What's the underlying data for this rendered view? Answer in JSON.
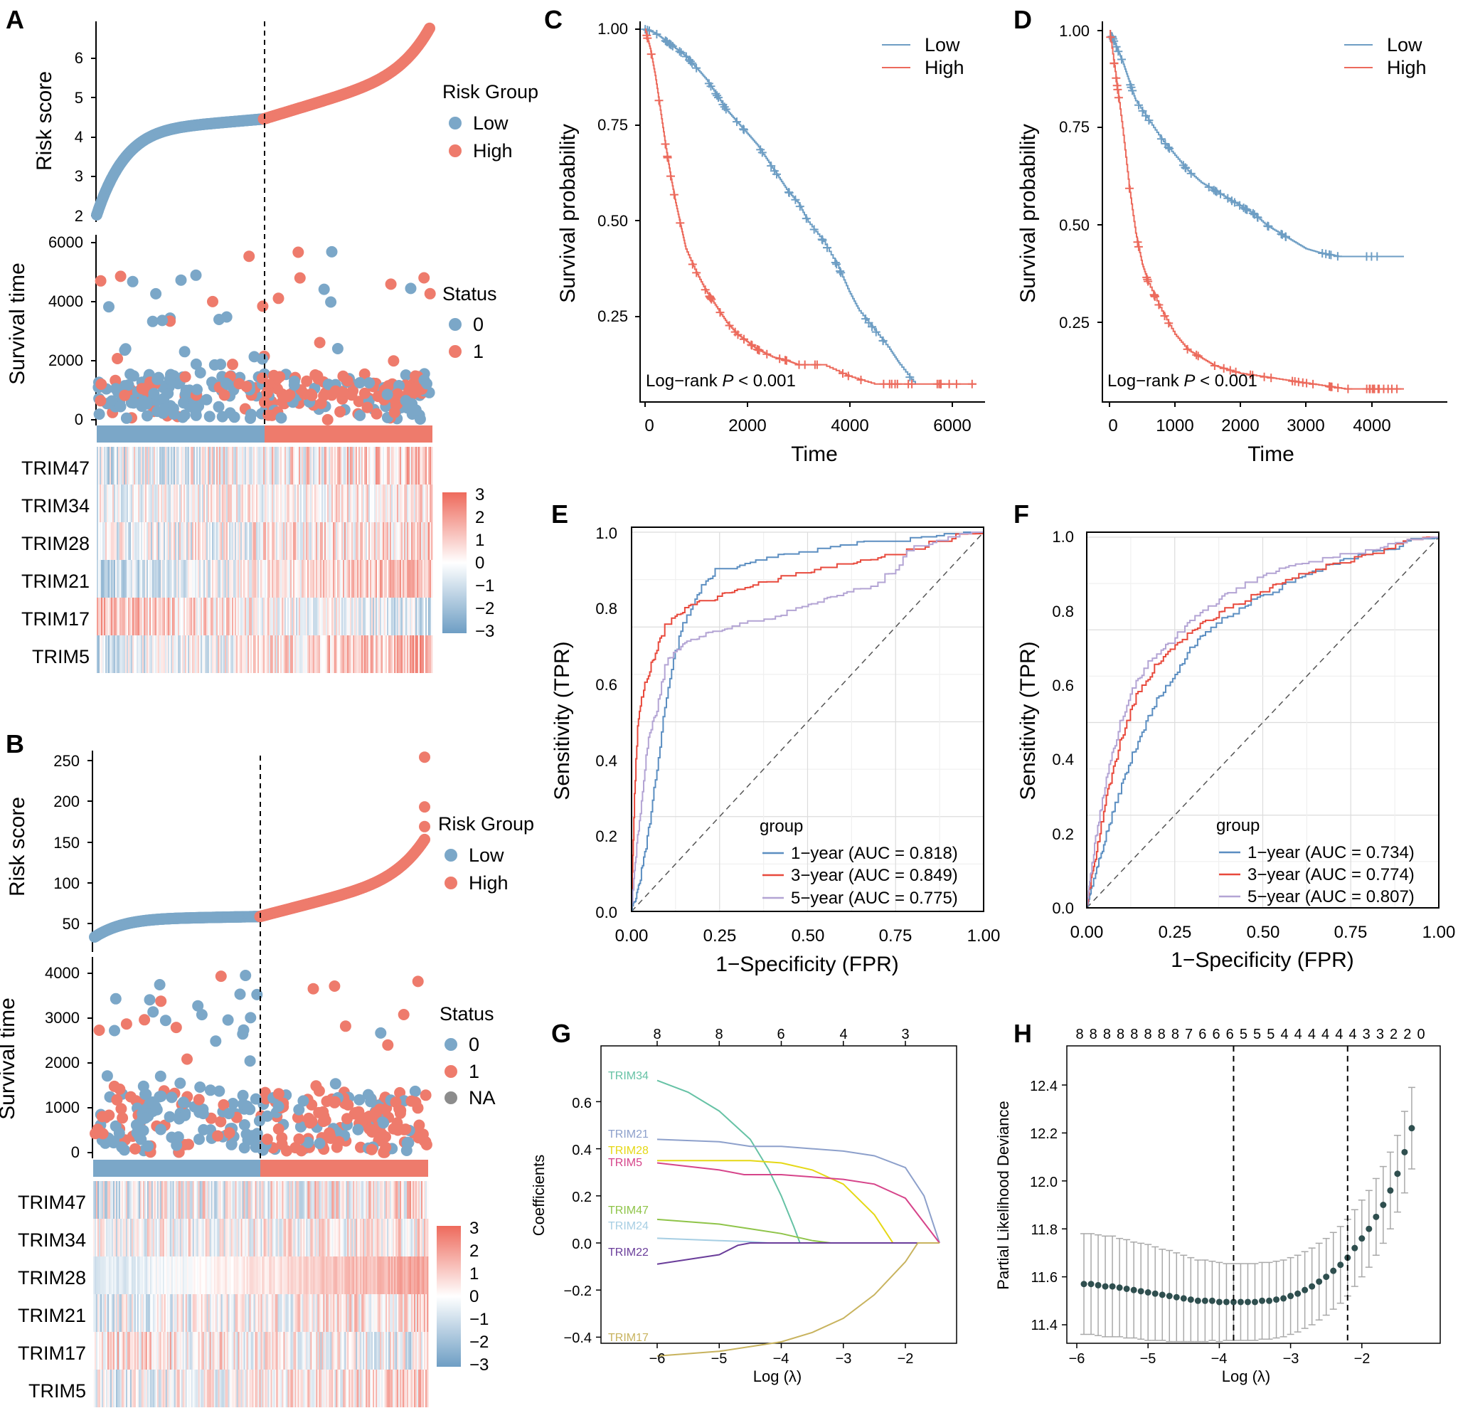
{
  "colors": {
    "low": "#7BA7C8",
    "high": "#EE7B6C",
    "low_line": "#6E9EC4",
    "high_line": "#EC6A5C",
    "na": "#8C8C8C",
    "roc1": "#5B8EC1",
    "roc3": "#E8493C",
    "roc5": "#B3A4D4",
    "dev_point": "#2F4F4F",
    "err": "#A9A9A9"
  },
  "panel_A": {
    "letter": "A",
    "risk_ylabel": "Risk score",
    "surv_ylabel": "Survival time",
    "risk_ticks": [
      "2",
      "3",
      "4",
      "5",
      "6"
    ],
    "surv_ticks": [
      "0",
      "2000",
      "4000",
      "6000"
    ],
    "legend_group_title": "Risk Group",
    "legend_low": "Low",
    "legend_high": "High",
    "legend_status_title": "Status",
    "legend_status_0": "0",
    "legend_status_1": "1",
    "genes": [
      "TRIM47",
      "TRIM34",
      "TRIM28",
      "TRIM21",
      "TRIM17",
      "TRIM5"
    ],
    "color_ticks": [
      "3",
      "2",
      "1",
      "0",
      "−1",
      "−2",
      "−3"
    ]
  },
  "panel_B": {
    "letter": "B",
    "risk_ylabel": "Risk score",
    "surv_ylabel": "Survival time",
    "risk_ticks": [
      "50",
      "100",
      "150",
      "200",
      "250"
    ],
    "surv_ticks": [
      "0",
      "1000",
      "2000",
      "3000",
      "4000"
    ],
    "legend_group_title": "Risk Group",
    "legend_low": "Low",
    "legend_high": "High",
    "legend_status_title": "Status",
    "legend_status_0": "0",
    "legend_status_1": "1",
    "legend_status_na": "NA",
    "genes": [
      "TRIM47",
      "TRIM34",
      "TRIM28",
      "TRIM21",
      "TRIM17",
      "TRIM5"
    ],
    "color_ticks": [
      "3",
      "2",
      "1",
      "0",
      "−1",
      "−2",
      "−3"
    ]
  },
  "panel_C": {
    "letter": "C",
    "xlabel": "Time",
    "ylabel": "Survival probability",
    "xticks": [
      "0",
      "2000",
      "4000",
      "6000"
    ],
    "yticks": [
      "0.25",
      "0.50",
      "0.75",
      "1.00"
    ],
    "legend": [
      "Low",
      "High"
    ],
    "annotation_prefix": "Log−rank ",
    "annotation_p": "P",
    "annotation_suffix": " < 0.001"
  },
  "panel_D": {
    "letter": "D",
    "xlabel": "Time",
    "ylabel": "Survival probability",
    "xticks": [
      "0",
      "1000",
      "2000",
      "3000",
      "4000"
    ],
    "yticks": [
      "0.25",
      "0.50",
      "0.75",
      "1.00"
    ],
    "legend": [
      "Low",
      "High"
    ],
    "annotation_prefix": "Log−rank ",
    "annotation_p": "P",
    "annotation_suffix": " < 0.001"
  },
  "panel_E": {
    "letter": "E",
    "xlabel": "1−Specificity (FPR)",
    "ylabel": "Sensitivity (TPR)",
    "xticks": [
      "0.00",
      "0.25",
      "0.50",
      "0.75",
      "1.00"
    ],
    "yticks": [
      "0.0",
      "0.2",
      "0.4",
      "0.6",
      "0.8",
      "1.0"
    ],
    "legend_title": "group",
    "legend": [
      "1−year (AUC = 0.818)",
      "3−year (AUC = 0.849)",
      "5−year (AUC = 0.775)"
    ]
  },
  "panel_F": {
    "letter": "F",
    "xlabel": "1−Specificity (FPR)",
    "ylabel": "Sensitivity (TPR)",
    "xticks": [
      "0.00",
      "0.25",
      "0.50",
      "0.75",
      "1.00"
    ],
    "yticks": [
      "0.0",
      "0.2",
      "0.4",
      "0.6",
      "0.8",
      "1.0"
    ],
    "legend_title": "group",
    "legend": [
      "1−year (AUC = 0.734)",
      "3−year (AUC = 0.774)",
      "5−year (AUC = 0.807)"
    ]
  },
  "panel_G": {
    "letter": "G",
    "xlabel": "Log (λ)",
    "ylabel": "Coefficients",
    "xticks": [
      "−6",
      "−5",
      "−4",
      "−3",
      "−2"
    ],
    "yticks": [
      "−0.4",
      "−0.2",
      "0.0",
      "0.2",
      "0.4",
      "0.6"
    ],
    "top_ticks": [
      "8",
      "8",
      "6",
      "4",
      "3"
    ]
  },
  "panel_H": {
    "letter": "H",
    "xlabel": "Log (λ)",
    "ylabel": "Partial Likelihood Deviance",
    "xticks": [
      "−6",
      "−5",
      "−4",
      "−3",
      "−2"
    ],
    "yticks": [
      "11.4",
      "11.6",
      "11.8",
      "12.0",
      "12.2",
      "12.4"
    ],
    "top_ticks": [
      "8",
      "8",
      "8",
      "8",
      "8",
      "8",
      "8",
      "8",
      "7",
      "6",
      "6",
      "6",
      "5",
      "5",
      "5",
      "4",
      "4",
      "4",
      "4",
      "4",
      "4",
      "3",
      "3",
      "2",
      "2",
      "0"
    ]
  },
  "chart_data": [
    {
      "panel": "A",
      "type": "scatter",
      "description_series": "risk score curve",
      "ylabel": "Risk score",
      "ylim": [
        2,
        6.8
      ],
      "n": 480,
      "cutoff_index": 240,
      "risk_min": 2.0,
      "risk_cut": 4.45,
      "risk_max": 6.8,
      "survival_ylabel": "Survival time",
      "survival_ylim": [
        0,
        6000
      ],
      "heatmap_rows": [
        "TRIM47",
        "TRIM34",
        "TRIM28",
        "TRIM21",
        "TRIM17",
        "TRIM5"
      ],
      "heatmap_range": [
        -3,
        3
      ]
    },
    {
      "panel": "B",
      "type": "scatter",
      "ylabel": "Risk score",
      "ylim": [
        20,
        250
      ],
      "n": 480,
      "cutoff_index": 240,
      "risk_min": 20,
      "risk_cut": 46,
      "risk_max": 145,
      "outliers": [
        160,
        185,
        248
      ],
      "survival_ylabel": "Survival time",
      "survival_ylim": [
        0,
        4500
      ],
      "heatmap_rows": [
        "TRIM47",
        "TRIM34",
        "TRIM28",
        "TRIM21",
        "TRIM17",
        "TRIM5"
      ],
      "heatmap_range": [
        -3,
        3
      ]
    },
    {
      "panel": "C",
      "type": "line",
      "xlabel": "Time",
      "ylabel": "Survival probability",
      "xlim": [
        0,
        6500
      ],
      "ylim": [
        0.05,
        1.0
      ],
      "series": [
        {
          "name": "Low",
          "x": [
            0,
            200,
            400,
            600,
            800,
            1000,
            1200,
            1400,
            1600,
            1800,
            2000,
            2200,
            2400,
            2600,
            2800,
            3000,
            3200,
            3500,
            3800,
            4000,
            4200,
            4500,
            4800,
            5000,
            5300
          ],
          "y": [
            1.0,
            0.99,
            0.97,
            0.95,
            0.93,
            0.9,
            0.87,
            0.83,
            0.79,
            0.76,
            0.73,
            0.7,
            0.66,
            0.62,
            0.58,
            0.55,
            0.5,
            0.45,
            0.38,
            0.32,
            0.27,
            0.22,
            0.17,
            0.13,
            0.08
          ]
        },
        {
          "name": "High",
          "x": [
            0,
            100,
            200,
            300,
            400,
            500,
            600,
            700,
            800,
            1000,
            1200,
            1400,
            1600,
            1800,
            2000,
            2200,
            2500,
            2800,
            3000,
            3500,
            4000,
            4500,
            5000,
            6000,
            6500
          ],
          "y": [
            1.0,
            0.95,
            0.88,
            0.79,
            0.7,
            0.62,
            0.55,
            0.49,
            0.43,
            0.37,
            0.32,
            0.28,
            0.24,
            0.21,
            0.19,
            0.17,
            0.15,
            0.14,
            0.13,
            0.13,
            0.1,
            0.08,
            0.08,
            0.08,
            0.08
          ]
        }
      ],
      "annotation": "Log−rank P < 0.001"
    },
    {
      "panel": "D",
      "type": "line",
      "xlabel": "Time",
      "ylabel": "Survival probability",
      "xlim": [
        0,
        4500
      ],
      "ylim": [
        0.05,
        1.0
      ],
      "series": [
        {
          "name": "Low",
          "x": [
            0,
            100,
            200,
            300,
            400,
            600,
            800,
            1000,
            1200,
            1400,
            1600,
            1800,
            2000,
            2200,
            2400,
            2600,
            2800,
            3000,
            3200,
            3500,
            4000,
            4500
          ],
          "y": [
            1.0,
            0.96,
            0.92,
            0.87,
            0.82,
            0.77,
            0.72,
            0.68,
            0.64,
            0.61,
            0.59,
            0.57,
            0.55,
            0.53,
            0.5,
            0.48,
            0.46,
            0.44,
            0.43,
            0.42,
            0.42,
            0.42
          ]
        },
        {
          "name": "High",
          "x": [
            0,
            100,
            200,
            300,
            400,
            500,
            600,
            800,
            1000,
            1200,
            1400,
            1600,
            1800,
            2000,
            2400,
            2800,
            3200,
            3600,
            4000,
            4500
          ],
          "y": [
            1.0,
            0.88,
            0.75,
            0.6,
            0.48,
            0.4,
            0.35,
            0.28,
            0.22,
            0.18,
            0.16,
            0.14,
            0.13,
            0.12,
            0.11,
            0.1,
            0.09,
            0.08,
            0.08,
            0.08
          ]
        }
      ],
      "annotation": "Log−rank P < 0.001"
    },
    {
      "panel": "E",
      "type": "line",
      "xlabel": "1−Specificity (FPR)",
      "ylabel": "Sensitivity (TPR)",
      "xlim": [
        0,
        1
      ],
      "ylim": [
        0,
        1
      ],
      "series": [
        {
          "name": "1−year (AUC = 0.818)",
          "x": [
            0,
            0.02,
            0.05,
            0.08,
            0.1,
            0.12,
            0.15,
            0.2,
            0.25,
            0.3,
            0.4,
            0.5,
            0.6,
            0.7,
            0.8,
            0.9,
            1.0
          ],
          "y": [
            0,
            0.05,
            0.2,
            0.4,
            0.55,
            0.65,
            0.75,
            0.85,
            0.9,
            0.9,
            0.93,
            0.94,
            0.96,
            0.97,
            0.98,
            0.99,
            1.0
          ]
        },
        {
          "name": "3−year (AUC = 0.849)",
          "x": [
            0,
            0.01,
            0.02,
            0.04,
            0.06,
            0.08,
            0.1,
            0.15,
            0.2,
            0.3,
            0.4,
            0.5,
            0.6,
            0.7,
            0.8,
            0.9,
            1.0
          ],
          "y": [
            0,
            0.3,
            0.5,
            0.6,
            0.65,
            0.7,
            0.75,
            0.79,
            0.81,
            0.84,
            0.87,
            0.89,
            0.91,
            0.93,
            0.95,
            0.98,
            1.0
          ]
        },
        {
          "name": "5−year (AUC = 0.775)",
          "x": [
            0,
            0.02,
            0.05,
            0.08,
            0.1,
            0.15,
            0.2,
            0.3,
            0.4,
            0.5,
            0.6,
            0.7,
            0.75,
            0.8,
            0.9,
            1.0
          ],
          "y": [
            0,
            0.2,
            0.45,
            0.55,
            0.65,
            0.7,
            0.72,
            0.75,
            0.77,
            0.8,
            0.83,
            0.86,
            0.9,
            0.95,
            0.98,
            1.0
          ]
        }
      ]
    },
    {
      "panel": "F",
      "type": "line",
      "xlabel": "1−Specificity (FPR)",
      "ylabel": "Sensitivity (TPR)",
      "xlim": [
        0,
        1
      ],
      "ylim": [
        0,
        1
      ],
      "series": [
        {
          "name": "1−year (AUC = 0.734)",
          "x": [
            0,
            0.03,
            0.06,
            0.1,
            0.15,
            0.2,
            0.25,
            0.3,
            0.4,
            0.5,
            0.6,
            0.7,
            0.8,
            0.9,
            1.0
          ],
          "y": [
            0,
            0.1,
            0.2,
            0.32,
            0.45,
            0.55,
            0.62,
            0.7,
            0.78,
            0.84,
            0.88,
            0.92,
            0.95,
            0.98,
            1.0
          ]
        },
        {
          "name": "3−year (AUC = 0.774)",
          "x": [
            0,
            0.03,
            0.06,
            0.1,
            0.15,
            0.2,
            0.25,
            0.3,
            0.4,
            0.5,
            0.6,
            0.7,
            0.8,
            0.9,
            1.0
          ],
          "y": [
            0,
            0.15,
            0.3,
            0.45,
            0.58,
            0.65,
            0.7,
            0.74,
            0.8,
            0.85,
            0.89,
            0.92,
            0.95,
            0.98,
            1.0
          ]
        },
        {
          "name": "5−year (AUC = 0.807)",
          "x": [
            0,
            0.03,
            0.06,
            0.1,
            0.15,
            0.2,
            0.25,
            0.3,
            0.4,
            0.5,
            0.6,
            0.7,
            0.8,
            0.9,
            1.0
          ],
          "y": [
            0,
            0.2,
            0.35,
            0.5,
            0.62,
            0.68,
            0.72,
            0.77,
            0.84,
            0.89,
            0.92,
            0.94,
            0.96,
            0.98,
            1.0
          ]
        }
      ]
    },
    {
      "panel": "G",
      "type": "line",
      "xlabel": "Log (λ)",
      "ylabel": "Coefficients",
      "xlim": [
        -6.8,
        -1.2
      ],
      "ylim": [
        -0.5,
        0.72
      ],
      "series": [
        {
          "name": "TRIM34",
          "x": [
            -6.0,
            -5.5,
            -5.0,
            -4.5,
            -4.2,
            -4.0,
            -3.8,
            -3.7
          ],
          "y": [
            0.69,
            0.64,
            0.56,
            0.44,
            0.31,
            0.2,
            0.07,
            0.0
          ]
        },
        {
          "name": "TRIM21",
          "x": [
            -6.0,
            -5.0,
            -4.5,
            -4.0,
            -3.5,
            -3.0,
            -2.5,
            -2.0,
            -1.7,
            -1.45
          ],
          "y": [
            0.44,
            0.43,
            0.41,
            0.41,
            0.4,
            0.39,
            0.37,
            0.32,
            0.2,
            0.0
          ]
        },
        {
          "name": "TRIM28",
          "x": [
            -6.0,
            -5.0,
            -4.5,
            -4.0,
            -3.5,
            -3.0,
            -2.5,
            -2.2
          ],
          "y": [
            0.35,
            0.35,
            0.35,
            0.34,
            0.31,
            0.25,
            0.12,
            0.0
          ]
        },
        {
          "name": "TRIM5",
          "x": [
            -6.0,
            -5.0,
            -4.6,
            -4.5,
            -4.0,
            -3.5,
            -3.0,
            -2.5,
            -2.0,
            -1.45
          ],
          "y": [
            0.34,
            0.31,
            0.29,
            0.29,
            0.29,
            0.28,
            0.27,
            0.25,
            0.19,
            0.0
          ]
        },
        {
          "name": "TRIM47",
          "x": [
            -6.0,
            -5.0,
            -4.5,
            -4.0,
            -3.5,
            -3.2
          ],
          "y": [
            0.1,
            0.08,
            0.06,
            0.04,
            0.01,
            0.0
          ]
        },
        {
          "name": "TRIM24",
          "x": [
            -6.0,
            -5.0,
            -4.5,
            -4.2
          ],
          "y": [
            0.02,
            0.01,
            0.005,
            0.0
          ]
        },
        {
          "name": "TRIM22",
          "x": [
            -6.0,
            -5.0,
            -4.7,
            -4.5
          ],
          "y": [
            -0.09,
            -0.05,
            -0.01,
            0.0
          ]
        },
        {
          "name": "TRIM17",
          "x": [
            -6.0,
            -5.0,
            -4.0,
            -3.5,
            -3.0,
            -2.5,
            -2.0,
            -1.8
          ],
          "y": [
            -0.48,
            -0.46,
            -0.42,
            -0.38,
            -0.32,
            -0.22,
            -0.08,
            0.0
          ]
        }
      ]
    },
    {
      "panel": "H",
      "type": "scatter",
      "xlabel": "Log (λ)",
      "ylabel": "Partial Likelihood Deviance",
      "xlim": [
        -6.0,
        -1.1
      ],
      "ylim": [
        11.3,
        12.42
      ],
      "lambda_min": -3.8,
      "lambda_1se": -2.2,
      "x": [
        -5.9,
        -5.8,
        -5.7,
        -5.6,
        -5.5,
        -5.4,
        -5.3,
        -5.2,
        -5.1,
        -5.0,
        -4.9,
        -4.8,
        -4.7,
        -4.6,
        -4.5,
        -4.4,
        -4.3,
        -4.2,
        -4.1,
        -4.0,
        -3.9,
        -3.8,
        -3.7,
        -3.6,
        -3.5,
        -3.4,
        -3.3,
        -3.2,
        -3.1,
        -3.0,
        -2.9,
        -2.8,
        -2.7,
        -2.6,
        -2.5,
        -2.4,
        -2.3,
        -2.2,
        -2.1,
        -2.0,
        -1.9,
        -1.8,
        -1.7,
        -1.6,
        -1.5,
        -1.4,
        -1.3
      ],
      "y": [
        11.57,
        11.57,
        11.565,
        11.56,
        11.56,
        11.555,
        11.55,
        11.545,
        11.54,
        11.535,
        11.53,
        11.525,
        11.52,
        11.515,
        11.51,
        11.505,
        11.5,
        11.5,
        11.5,
        11.495,
        11.495,
        11.495,
        11.495,
        11.495,
        11.495,
        11.5,
        11.5,
        11.505,
        11.51,
        11.52,
        11.53,
        11.545,
        11.56,
        11.58,
        11.6,
        11.625,
        11.65,
        11.68,
        11.72,
        11.76,
        11.8,
        11.85,
        11.9,
        11.96,
        12.03,
        12.12,
        12.22
      ],
      "err": [
        0.21,
        0.21,
        0.21,
        0.21,
        0.21,
        0.205,
        0.205,
        0.2,
        0.2,
        0.2,
        0.195,
        0.19,
        0.19,
        0.185,
        0.18,
        0.175,
        0.17,
        0.17,
        0.165,
        0.165,
        0.16,
        0.16,
        0.16,
        0.16,
        0.16,
        0.16,
        0.16,
        0.16,
        0.16,
        0.16,
        0.16,
        0.16,
        0.16,
        0.16,
        0.16,
        0.16,
        0.16,
        0.16,
        0.16,
        0.16,
        0.16,
        0.16,
        0.16,
        0.16,
        0.16,
        0.17,
        0.17
      ]
    }
  ]
}
